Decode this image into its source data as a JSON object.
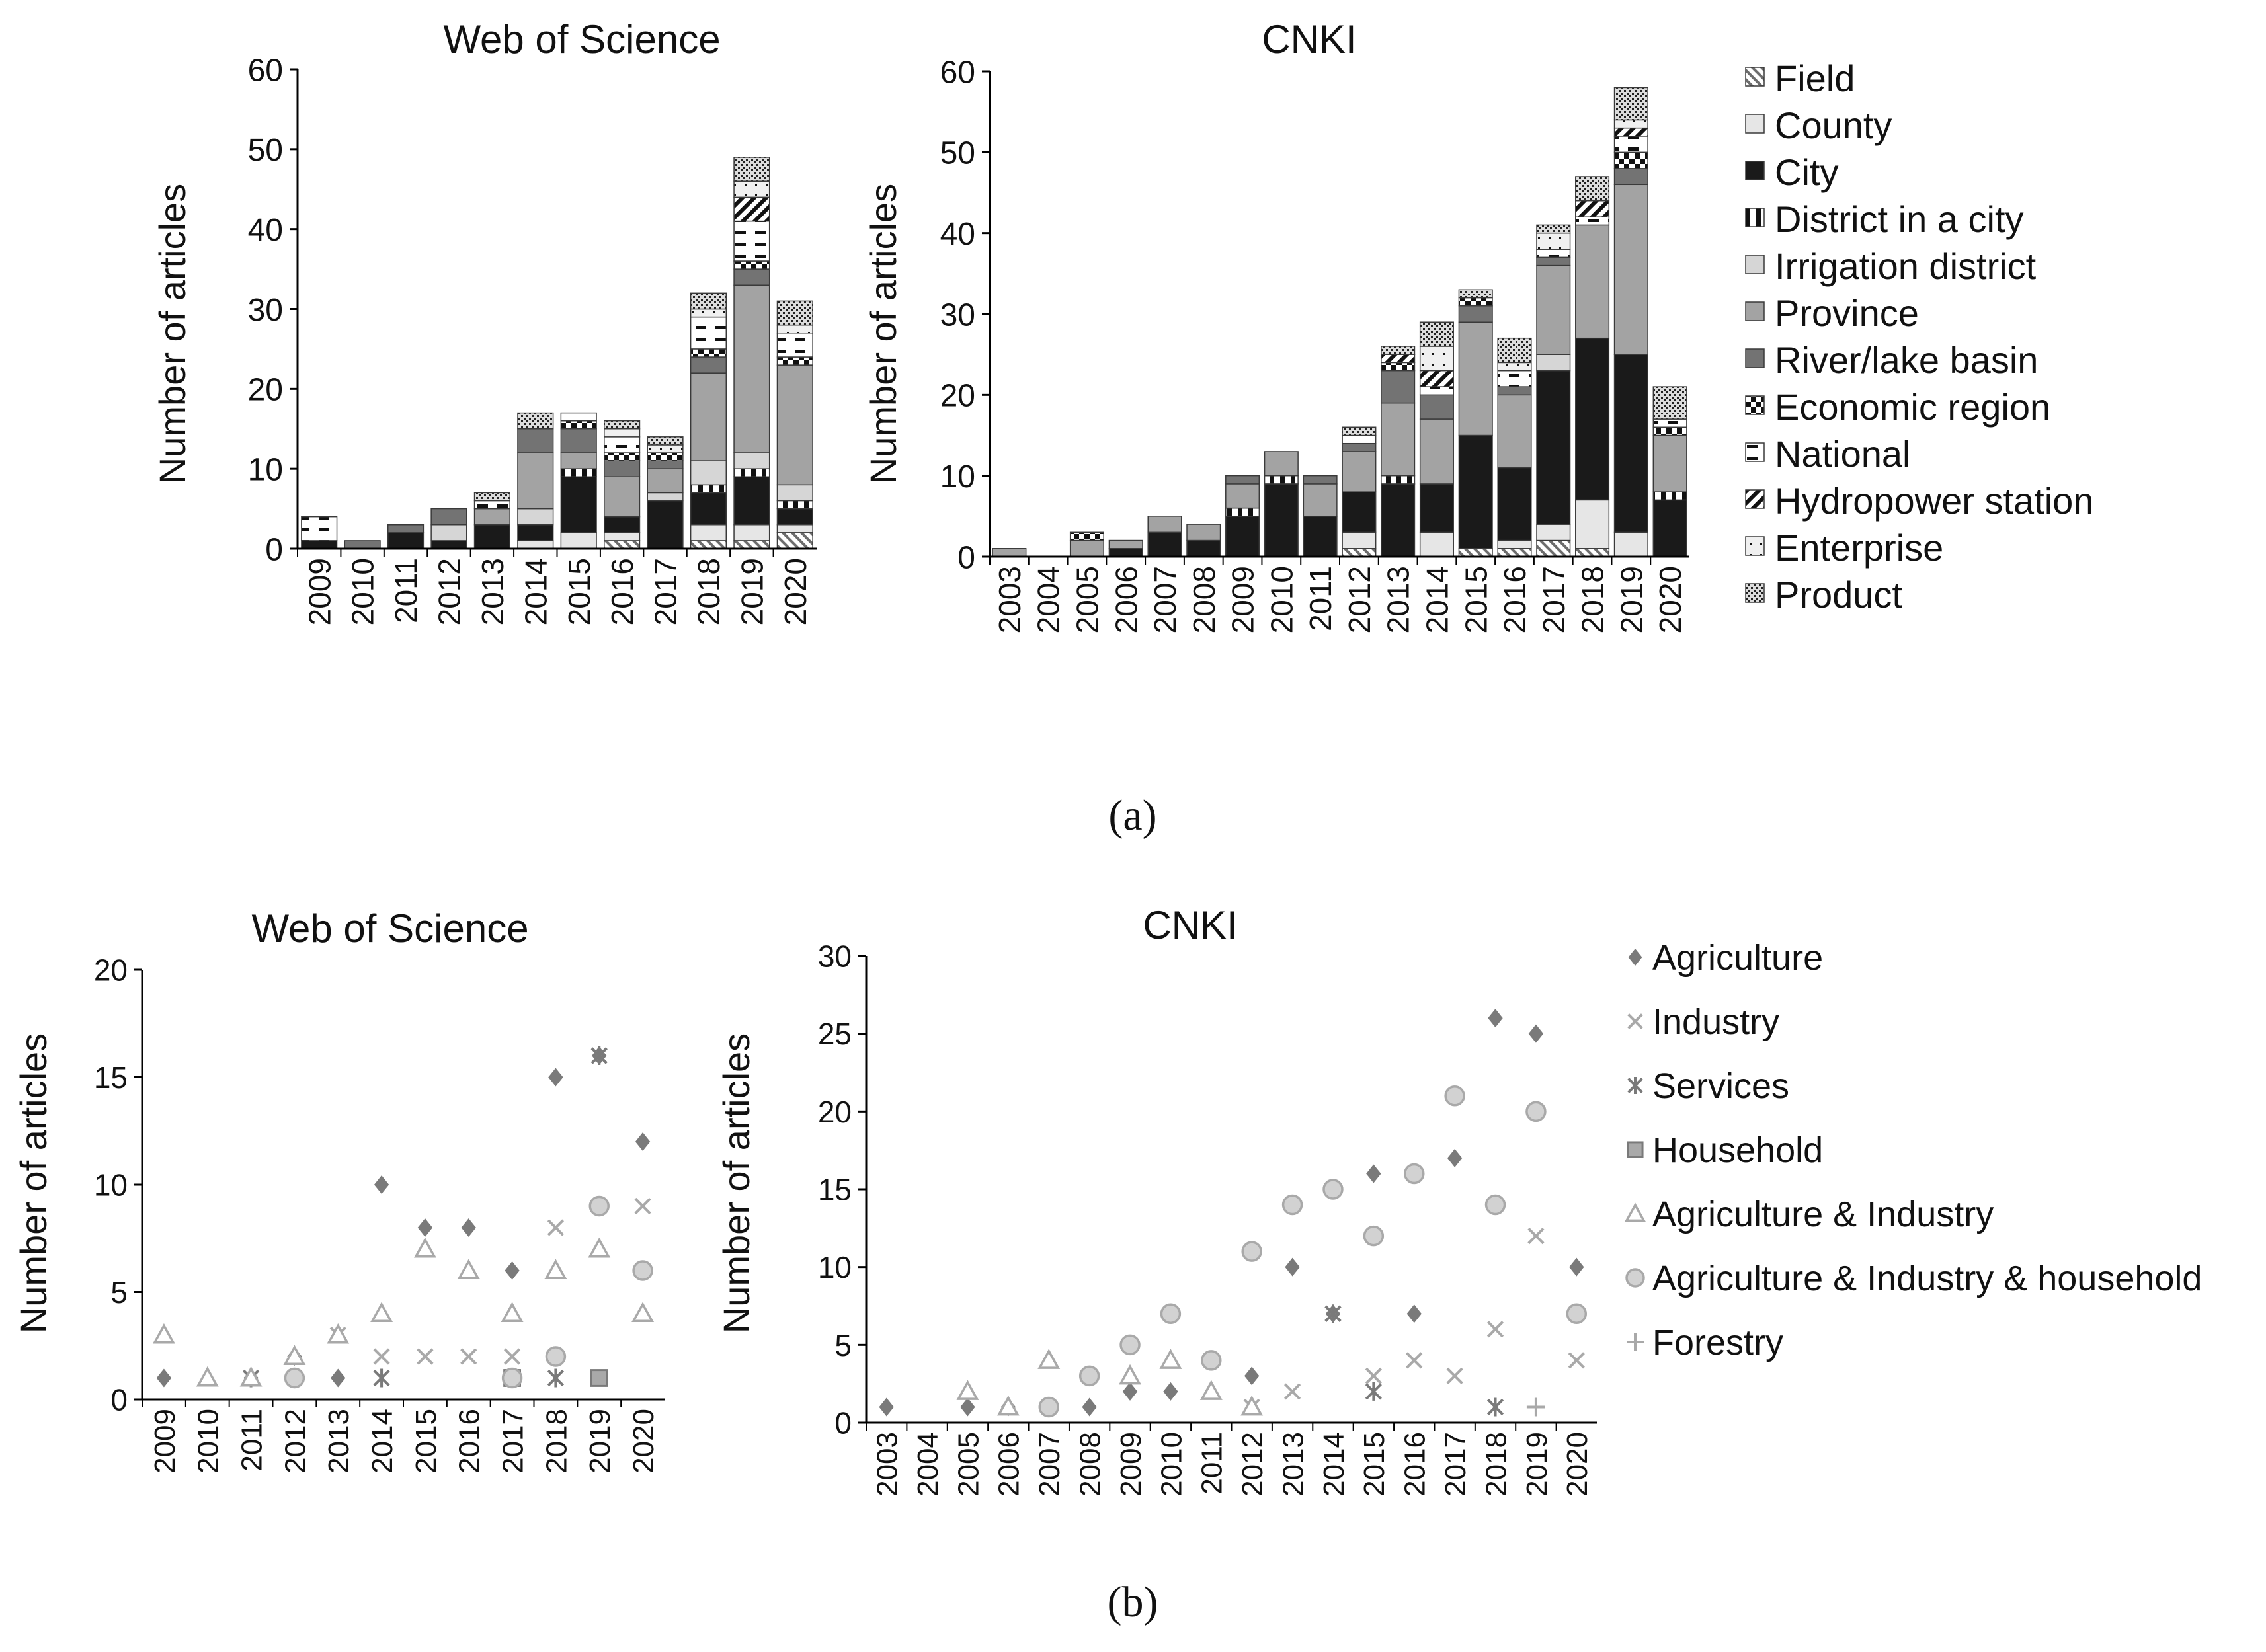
{
  "captions": {
    "a": "(a)",
    "b": "(b)"
  },
  "palette": {
    "axis": "#000000",
    "black": "#1a1a1a",
    "dark": "#6d6d6d",
    "mid": "#9a9a9a",
    "light": "#d2d2d2",
    "lighter": "#e8e8e8",
    "marker_dark": "#7a7a7a",
    "marker_light": "#a9a9a9",
    "marker_lighter": "#bdbdbd"
  },
  "legend_a": {
    "items": [
      {
        "key": "field",
        "label": "Field",
        "pattern": "pat-field"
      },
      {
        "key": "county",
        "label": "County",
        "pattern": "pat-county"
      },
      {
        "key": "city",
        "label": "City",
        "pattern": "pat-city"
      },
      {
        "key": "district",
        "label": "District in a city",
        "pattern": "pat-district"
      },
      {
        "key": "irrigation",
        "label": "Irrigation district",
        "pattern": "pat-irrigation"
      },
      {
        "key": "province",
        "label": "Province",
        "pattern": "pat-province"
      },
      {
        "key": "basin",
        "label": "River/lake basin",
        "pattern": "pat-basin"
      },
      {
        "key": "econ",
        "label": "Economic region",
        "pattern": "pat-econ"
      },
      {
        "key": "national",
        "label": "National",
        "pattern": "pat-national"
      },
      {
        "key": "hydro",
        "label": "Hydropower station",
        "pattern": "pat-hydro"
      },
      {
        "key": "enterprise",
        "label": "Enterprise",
        "pattern": "pat-enterprise"
      },
      {
        "key": "product",
        "label": "Product",
        "pattern": "pat-product"
      }
    ]
  },
  "legend_b": {
    "items": [
      {
        "key": "agriculture",
        "label": "Agriculture",
        "marker": "diamond"
      },
      {
        "key": "industry",
        "label": "Industry",
        "marker": "x"
      },
      {
        "key": "services",
        "label": "Services",
        "marker": "star"
      },
      {
        "key": "household",
        "label": "Household",
        "marker": "square"
      },
      {
        "key": "agri_ind",
        "label": "Agriculture & Industry",
        "marker": "triangle"
      },
      {
        "key": "agri_ind_house",
        "label": "Agriculture & Industry & household",
        "marker": "circle"
      },
      {
        "key": "forestry",
        "label": "Forestry",
        "marker": "plus"
      }
    ]
  },
  "chart_data": [
    {
      "id": "a-wos",
      "type": "bar",
      "stacked": true,
      "title": "Web of Science",
      "ylabel": "Number of articles",
      "xlabel": "",
      "ylim": [
        0,
        60
      ],
      "yticks": [
        0,
        10,
        20,
        30,
        40,
        50,
        60
      ],
      "categories": [
        "2009",
        "2010",
        "2011",
        "2012",
        "2013",
        "2014",
        "2015",
        "2016",
        "2017",
        "2018",
        "2019",
        "2020"
      ],
      "series": [
        {
          "name": "Field",
          "values": [
            0,
            0,
            0,
            0,
            0,
            0,
            0,
            1,
            0,
            1,
            1,
            2
          ]
        },
        {
          "name": "County",
          "values": [
            0,
            0,
            0,
            0,
            0,
            1,
            2,
            1,
            0,
            2,
            2,
            1
          ]
        },
        {
          "name": "City",
          "values": [
            1,
            0,
            2,
            1,
            3,
            2,
            7,
            2,
            6,
            4,
            6,
            2
          ]
        },
        {
          "name": "District in a city",
          "values": [
            0,
            0,
            0,
            0,
            0,
            0,
            1,
            0,
            0,
            1,
            1,
            1
          ]
        },
        {
          "name": "Irrigation district",
          "values": [
            0,
            0,
            0,
            2,
            0,
            2,
            0,
            0,
            1,
            3,
            2,
            2
          ]
        },
        {
          "name": "Province",
          "values": [
            0,
            0,
            0,
            0,
            2,
            7,
            2,
            5,
            3,
            11,
            21,
            15
          ]
        },
        {
          "name": "River/lake basin",
          "values": [
            0,
            1,
            1,
            2,
            0,
            3,
            3,
            2,
            1,
            2,
            2,
            0
          ]
        },
        {
          "name": "Economic region",
          "values": [
            0,
            0,
            0,
            0,
            0,
            0,
            1,
            1,
            1,
            1,
            1,
            1
          ]
        },
        {
          "name": "National",
          "values": [
            3,
            0,
            0,
            0,
            1,
            0,
            1,
            2,
            0,
            4,
            5,
            3
          ]
        },
        {
          "name": "Hydropower station",
          "values": [
            0,
            0,
            0,
            0,
            0,
            0,
            0,
            0,
            0,
            0,
            3,
            0
          ]
        },
        {
          "name": "Enterprise",
          "values": [
            0,
            0,
            0,
            0,
            0,
            0,
            0,
            1,
            1,
            1,
            2,
            1
          ]
        },
        {
          "name": "Product",
          "values": [
            0,
            0,
            0,
            0,
            1,
            2,
            0,
            1,
            1,
            2,
            3,
            3
          ]
        }
      ]
    },
    {
      "id": "a-cnki",
      "type": "bar",
      "stacked": true,
      "title": "CNKI",
      "ylabel": "Number of articles",
      "xlabel": "",
      "ylim": [
        0,
        60
      ],
      "yticks": [
        0,
        10,
        20,
        30,
        40,
        50,
        60
      ],
      "categories": [
        "2003",
        "2004",
        "2005",
        "2006",
        "2007",
        "2008",
        "2009",
        "2010",
        "2011",
        "2012",
        "2013",
        "2014",
        "2015",
        "2016",
        "2017",
        "2018",
        "2019",
        "2020"
      ],
      "series": [
        {
          "name": "Field",
          "values": [
            0,
            0,
            0,
            0,
            0,
            0,
            0,
            0,
            0,
            1,
            0,
            0,
            1,
            1,
            2,
            1,
            0,
            0
          ]
        },
        {
          "name": "County",
          "values": [
            0,
            0,
            0,
            0,
            0,
            0,
            0,
            0,
            0,
            2,
            0,
            3,
            0,
            1,
            2,
            6,
            3,
            0
          ]
        },
        {
          "name": "City",
          "values": [
            0,
            0,
            0,
            1,
            3,
            2,
            5,
            9,
            5,
            5,
            9,
            6,
            14,
            9,
            19,
            20,
            22,
            7
          ]
        },
        {
          "name": "District in a city",
          "values": [
            0,
            0,
            0,
            0,
            0,
            0,
            1,
            1,
            0,
            0,
            1,
            0,
            0,
            0,
            0,
            0,
            0,
            1
          ]
        },
        {
          "name": "Irrigation district",
          "values": [
            0,
            0,
            0,
            0,
            0,
            0,
            0,
            0,
            0,
            0,
            0,
            0,
            0,
            0,
            2,
            0,
            0,
            0
          ]
        },
        {
          "name": "Province",
          "values": [
            1,
            0,
            2,
            1,
            2,
            2,
            3,
            3,
            4,
            5,
            9,
            8,
            14,
            9,
            11,
            14,
            21,
            7
          ]
        },
        {
          "name": "River/lake basin",
          "values": [
            0,
            0,
            0,
            0,
            0,
            0,
            1,
            0,
            1,
            1,
            4,
            3,
            2,
            1,
            1,
            0,
            2,
            0
          ]
        },
        {
          "name": "Economic region",
          "values": [
            0,
            0,
            1,
            0,
            0,
            0,
            0,
            0,
            0,
            0,
            1,
            0,
            1,
            0,
            0,
            0,
            2,
            1
          ]
        },
        {
          "name": "National",
          "values": [
            0,
            0,
            0,
            0,
            0,
            0,
            0,
            0,
            0,
            1,
            0,
            1,
            0,
            2,
            1,
            1,
            2,
            1
          ]
        },
        {
          "name": "Hydropower station",
          "values": [
            0,
            0,
            0,
            0,
            0,
            0,
            0,
            0,
            0,
            0,
            1,
            2,
            0,
            0,
            0,
            2,
            1,
            0
          ]
        },
        {
          "name": "Enterprise",
          "values": [
            0,
            0,
            0,
            0,
            0,
            0,
            0,
            0,
            0,
            0,
            0,
            3,
            0,
            1,
            2,
            0,
            1,
            0
          ]
        },
        {
          "name": "Product",
          "values": [
            0,
            0,
            0,
            0,
            0,
            0,
            0,
            0,
            0,
            1,
            1,
            3,
            1,
            3,
            1,
            3,
            4,
            4
          ]
        }
      ]
    },
    {
      "id": "b-wos",
      "type": "scatter",
      "title": "Web of Science",
      "ylabel": "Number of articles",
      "xlabel": "",
      "ylim": [
        0,
        20
      ],
      "yticks": [
        0,
        5,
        10,
        15,
        20
      ],
      "categories": [
        "2009",
        "2010",
        "2011",
        "2012",
        "2013",
        "2014",
        "2015",
        "2016",
        "2017",
        "2018",
        "2019",
        "2020"
      ],
      "series": [
        {
          "name": "Agriculture",
          "marker": "diamond",
          "points": [
            [
              "2009",
              1
            ],
            [
              "2011",
              1
            ],
            [
              "2012",
              2
            ],
            [
              "2013",
              1
            ],
            [
              "2014",
              10
            ],
            [
              "2015",
              8
            ],
            [
              "2016",
              8
            ],
            [
              "2017",
              6
            ],
            [
              "2018",
              15
            ],
            [
              "2019",
              16
            ],
            [
              "2020",
              12
            ]
          ]
        },
        {
          "name": "Industry",
          "marker": "x",
          "points": [
            [
              "2011",
              1
            ],
            [
              "2013",
              3
            ],
            [
              "2014",
              2
            ],
            [
              "2015",
              2
            ],
            [
              "2016",
              2
            ],
            [
              "2017",
              2
            ],
            [
              "2018",
              8
            ],
            [
              "2019",
              16
            ],
            [
              "2020",
              9
            ]
          ]
        },
        {
          "name": "Services",
          "marker": "star",
          "points": [
            [
              "2011",
              1
            ],
            [
              "2014",
              1
            ],
            [
              "2018",
              1
            ],
            [
              "2019",
              16
            ]
          ]
        },
        {
          "name": "Household",
          "marker": "square",
          "points": [
            [
              "2017",
              1
            ],
            [
              "2019",
              1
            ]
          ]
        },
        {
          "name": "Agriculture & Industry",
          "marker": "triangle",
          "points": [
            [
              "2009",
              3
            ],
            [
              "2010",
              1
            ],
            [
              "2011",
              1
            ],
            [
              "2012",
              2
            ],
            [
              "2013",
              3
            ],
            [
              "2014",
              4
            ],
            [
              "2015",
              7
            ],
            [
              "2016",
              6
            ],
            [
              "2017",
              4
            ],
            [
              "2018",
              6
            ],
            [
              "2019",
              7
            ],
            [
              "2020",
              4
            ]
          ]
        },
        {
          "name": "Agriculture & Industry & household",
          "marker": "circle",
          "points": [
            [
              "2012",
              1
            ],
            [
              "2017",
              1
            ],
            [
              "2018",
              2
            ],
            [
              "2019",
              9
            ],
            [
              "2020",
              6
            ]
          ]
        }
      ]
    },
    {
      "id": "b-cnki",
      "type": "scatter",
      "title": "CNKI",
      "ylabel": "Number of articles",
      "xlabel": "",
      "ylim": [
        0,
        30
      ],
      "yticks": [
        0,
        5,
        10,
        15,
        20,
        25,
        30
      ],
      "categories": [
        "2003",
        "2004",
        "2005",
        "2006",
        "2007",
        "2008",
        "2009",
        "2010",
        "2011",
        "2012",
        "2013",
        "2014",
        "2015",
        "2016",
        "2017",
        "2018",
        "2019",
        "2020"
      ],
      "series": [
        {
          "name": "Agriculture",
          "marker": "diamond",
          "points": [
            [
              "2003",
              1
            ],
            [
              "2005",
              1
            ],
            [
              "2006",
              1
            ],
            [
              "2008",
              1
            ],
            [
              "2009",
              2
            ],
            [
              "2010",
              2
            ],
            [
              "2012",
              3
            ],
            [
              "2013",
              10
            ],
            [
              "2014",
              7
            ],
            [
              "2015",
              16
            ],
            [
              "2016",
              7
            ],
            [
              "2017",
              17
            ],
            [
              "2018",
              26
            ],
            [
              "2019",
              25
            ],
            [
              "2020",
              10
            ]
          ]
        },
        {
          "name": "Industry",
          "marker": "x",
          "points": [
            [
              "2012",
              1
            ],
            [
              "2013",
              2
            ],
            [
              "2014",
              7
            ],
            [
              "2015",
              3
            ],
            [
              "2016",
              4
            ],
            [
              "2017",
              3
            ],
            [
              "2018",
              6
            ],
            [
              "2019",
              12
            ],
            [
              "2020",
              4
            ]
          ]
        },
        {
          "name": "Services",
          "marker": "star",
          "points": [
            [
              "2014",
              7
            ],
            [
              "2015",
              2
            ],
            [
              "2018",
              1
            ]
          ]
        },
        {
          "name": "Agriculture & Industry",
          "marker": "triangle",
          "points": [
            [
              "2005",
              2
            ],
            [
              "2006",
              1
            ],
            [
              "2007",
              4
            ],
            [
              "2009",
              3
            ],
            [
              "2010",
              4
            ],
            [
              "2011",
              2
            ],
            [
              "2012",
              1
            ]
          ]
        },
        {
          "name": "Agriculture & Industry & household",
          "marker": "circle",
          "points": [
            [
              "2007",
              1
            ],
            [
              "2008",
              3
            ],
            [
              "2009",
              5
            ],
            [
              "2010",
              7
            ],
            [
              "2011",
              4
            ],
            [
              "2012",
              11
            ],
            [
              "2013",
              14
            ],
            [
              "2014",
              15
            ],
            [
              "2015",
              12
            ],
            [
              "2016",
              16
            ],
            [
              "2017",
              21
            ],
            [
              "2018",
              14
            ],
            [
              "2019",
              20
            ],
            [
              "2020",
              7
            ]
          ]
        },
        {
          "name": "Forestry",
          "marker": "plus",
          "points": [
            [
              "2019",
              1
            ]
          ]
        }
      ]
    }
  ]
}
